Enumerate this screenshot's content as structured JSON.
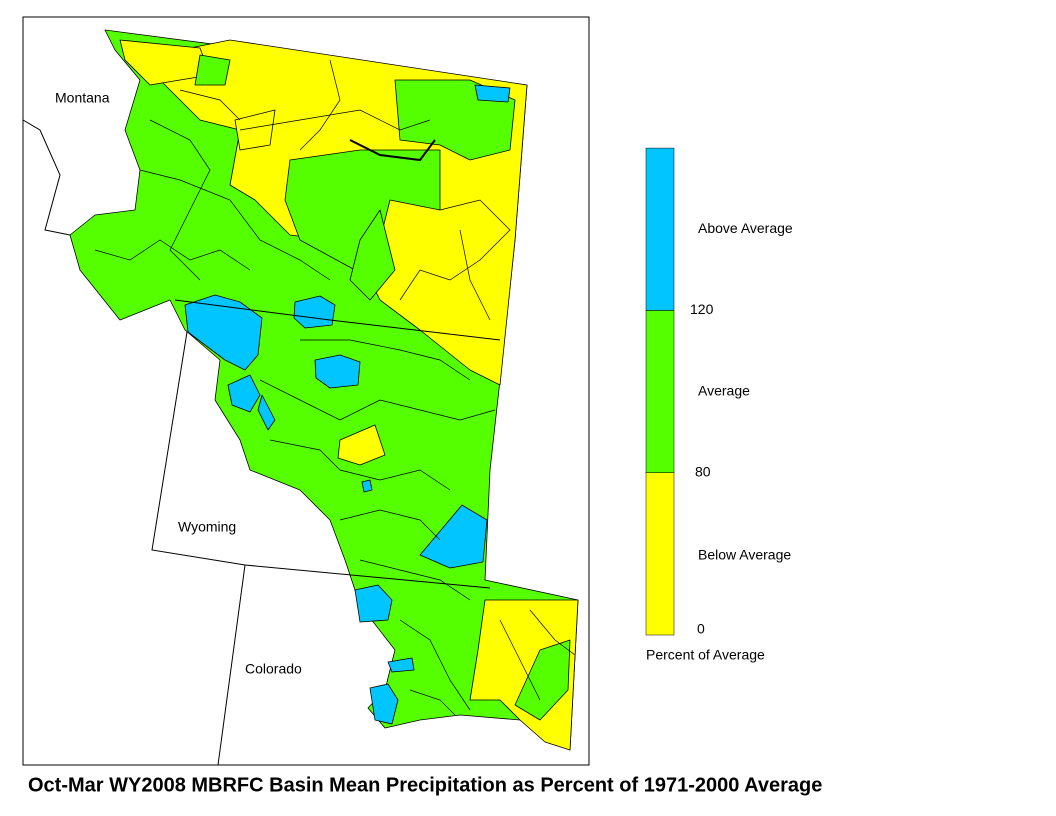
{
  "map": {
    "state_labels": [
      "Montana",
      "Wyoming",
      "Colorado"
    ],
    "caption": "Oct-Mar WY2008 MBRFC Basin Mean Precipitation as Percent of 1971-2000 Average"
  },
  "legend": {
    "title": "Percent of Average",
    "classes": [
      {
        "label": "Below Average",
        "color": "#ffff00"
      },
      {
        "label": "Average",
        "color": "#55ff00"
      },
      {
        "label": "Above Average",
        "color": "#00c5ff"
      }
    ],
    "ticks": [
      0,
      80,
      120
    ]
  }
}
